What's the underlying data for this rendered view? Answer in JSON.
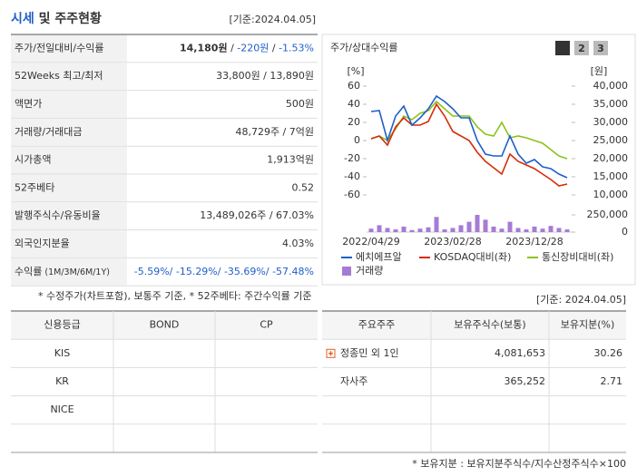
{
  "header": {
    "title_main": "시세",
    "title_rest": " 및 주주현황",
    "date": "[기준:2024.04.05]"
  },
  "quote_table": {
    "rows": [
      {
        "label": [
          "주가/전일대비/수익률"
        ],
        "value": [
          "14,180원",
          " / ",
          "-220원",
          " / ",
          "-1.53%"
        ]
      },
      {
        "label": [
          "52Weeks 최고/최저"
        ],
        "value": [
          "33,800원 / 13,890원"
        ]
      },
      {
        "label": [
          "액면가"
        ],
        "value": [
          "500원"
        ]
      },
      {
        "label": [
          "거래량/거래대금"
        ],
        "value": [
          "48,729주 / 7억원"
        ]
      },
      {
        "label": [
          "시가총액"
        ],
        "value": [
          "1,913억원"
        ]
      },
      {
        "label": [
          "52주베타"
        ],
        "value": [
          "0.52"
        ]
      },
      {
        "label": [
          "발행주식수/유동비율"
        ],
        "value": [
          "13,489,026주 / 67.03%"
        ]
      },
      {
        "label": [
          "외국인지분율"
        ],
        "value": [
          "4.03%"
        ]
      },
      {
        "label": [
          "수익률",
          " (1M/3M/6M/1Y)"
        ],
        "value": [
          "-5.59%/ -15.29%/ -35.69%/ -57.48%"
        ]
      }
    ],
    "footnote": "* 수정주가(차트포함), 보통주 기준, * 52주베타: 주간수익률 기준"
  },
  "chart": {
    "type": "line",
    "title": "주가/상대수익률",
    "buttons": [
      "1",
      "2",
      "3"
    ],
    "y_unit": "[%]",
    "y2_unit": "[원]",
    "categories": [
      "2022/04/29",
      null,
      null,
      null,
      null,
      null,
      null,
      null,
      null,
      null,
      "2023/02/28",
      null,
      null,
      null,
      null,
      null,
      null,
      null,
      null,
      null,
      "2023/12/28",
      null,
      null,
      null,
      null
    ],
    "series": [
      {
        "name": "에치에프알",
        "color": "#1f5fc8",
        "axis": "y2",
        "values": [
          33000,
          33250,
          25000,
          31750,
          34500,
          29250,
          31250,
          33750,
          37250,
          35750,
          33750,
          31250,
          31250,
          25000,
          21250,
          20750,
          20750,
          26250,
          21250,
          18750,
          19750,
          17750,
          17250,
          15750,
          14750
        ]
      },
      {
        "name": "KOSDAQ대비(좌)",
        "color": "#d62b0a",
        "values": [
          2,
          5,
          -5,
          15,
          25,
          17,
          17,
          21,
          40,
          27,
          10,
          5,
          0,
          -13,
          -23,
          -30,
          -37,
          -15,
          -23,
          -27,
          -31,
          -37,
          -43,
          -50,
          -48
        ]
      },
      {
        "name": "통신장비대비(좌)",
        "color": "#8cc21a",
        "values": [
          2,
          5,
          0,
          13,
          27,
          23,
          30,
          33,
          43,
          35,
          27,
          27,
          27,
          15,
          7,
          5,
          20,
          3,
          5,
          3,
          0,
          -3,
          -10,
          -17,
          -20
        ]
      },
      {
        "name": "거래량",
        "color": "#a57bd6",
        "axis": "volume",
        "values": [
          50000,
          100000,
          60000,
          40000,
          80000,
          30000,
          50000,
          70000,
          220000,
          40000,
          60000,
          100000,
          150000,
          250000,
          180000,
          80000,
          50000,
          150000,
          60000,
          40000,
          80000,
          50000,
          90000,
          60000,
          40000
        ]
      }
    ],
    "ylim": [
      -60,
      60
    ],
    "yticks": [
      -60,
      -40,
      -20,
      0,
      20,
      40,
      60
    ],
    "y2lim": [
      10000,
      40000
    ],
    "y2ticks": [
      {
        "value": 10000,
        "label": "10,000"
      },
      {
        "value": 15000,
        "label": "15,000"
      },
      {
        "value": 20000,
        "label": "20,000"
      },
      {
        "value": 25000,
        "label": "25,000"
      },
      {
        "value": 30000,
        "label": "30,000"
      },
      {
        "value": 35000,
        "label": "35,000"
      },
      {
        "value": 40000,
        "label": "40,000"
      }
    ],
    "volume_lim": [
      0,
      250000
    ],
    "volume_ticks": [
      0,
      {
        "value": 250000,
        "label": "250,000"
      }
    ]
  },
  "date_note": "[기준: 2024.04.05]",
  "rating_table": {
    "header": [
      "신용등급",
      "BOND",
      "CP"
    ],
    "rows": [
      [
        "KIS"
      ],
      [
        "KR"
      ],
      [
        "NICE"
      ],
      []
    ]
  },
  "holder_table": {
    "header": [
      "주요주주",
      "보유주식수(보통)",
      "보유지분(%)"
    ],
    "rows": [
      [
        "정종민 외 1인",
        "4,081,653",
        "30.26"
      ],
      [
        "자사주",
        "365,252",
        "2.71"
      ],
      [],
      []
    ],
    "footnote": "* 보유지분 : 보유지분주식수/지수산정주식수×100"
  }
}
